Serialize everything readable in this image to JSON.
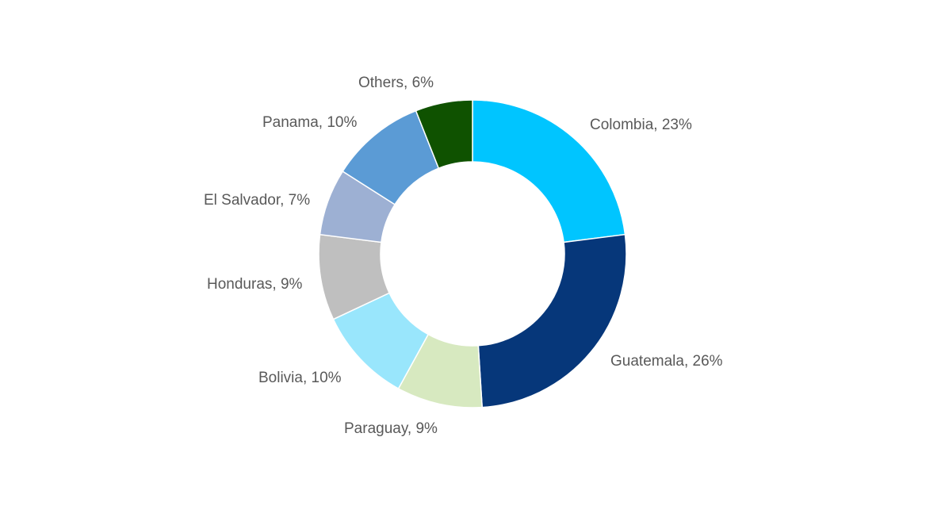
{
  "chart_data": {
    "type": "pie",
    "donut": true,
    "categories": [
      "Colombia",
      "Guatemala",
      "Paraguay",
      "Bolivia",
      "Honduras",
      "El Salvador",
      "Panama",
      "Others"
    ],
    "values": [
      23,
      26,
      9,
      10,
      9,
      7,
      10,
      6
    ],
    "unit": "%",
    "colors": [
      "#00C5FF",
      "#06377A",
      "#D7E9C0",
      "#99E6FC",
      "#BFBFBF",
      "#9DB0D3",
      "#5B9BD5",
      "#0F5200"
    ],
    "start": "top",
    "direction": "clockwise",
    "legend": "none",
    "data_labels": "outside"
  }
}
